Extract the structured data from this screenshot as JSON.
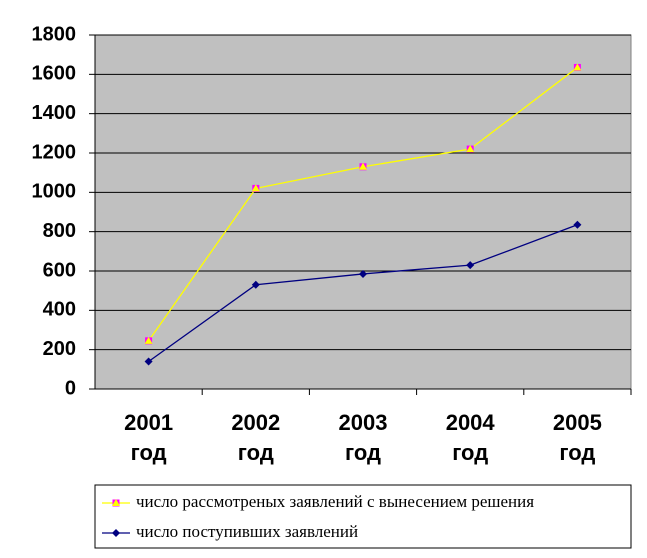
{
  "chart_data": {
    "type": "line",
    "categories": [
      "2001 год",
      "2002 год",
      "2003 год",
      "2004 год",
      "2005 год"
    ],
    "series": [
      {
        "name": "число рассмотреных заявлений с вынесением решения",
        "color": "#ffff00",
        "marker_color": "#ff00ff",
        "values": [
          245,
          1020,
          1130,
          1220,
          1635
        ]
      },
      {
        "name": "число поступивших заявлений",
        "color": "#000080",
        "marker_color": "#000080",
        "values": [
          140,
          530,
          585,
          630,
          835
        ]
      }
    ],
    "ylim": [
      0,
      1800
    ],
    "yticks": [
      0,
      200,
      400,
      600,
      800,
      1000,
      1200,
      1400,
      1600,
      1800
    ],
    "grid": true
  }
}
